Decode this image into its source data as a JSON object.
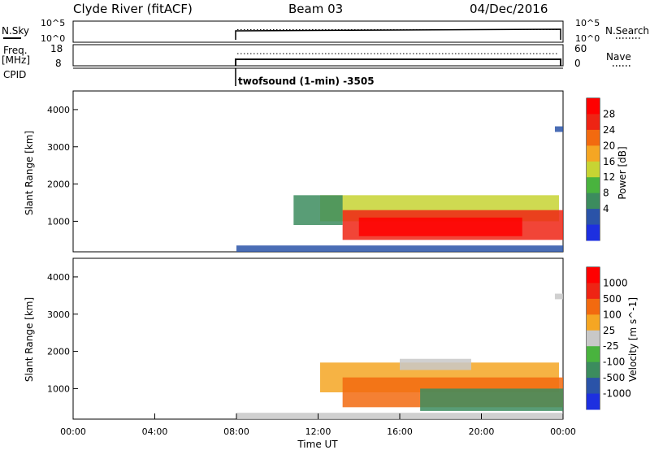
{
  "header": {
    "site": "Clyde River (fitACF)",
    "beam": "Beam 03",
    "date": "04/Dec/2016"
  },
  "panels": {
    "nsky": {
      "left_label": "N.Sky",
      "left_ticks": [
        "10^5",
        "10^0"
      ],
      "right_ticks": [
        "10^5",
        "10^0"
      ],
      "right_label": "N.Search"
    },
    "freq": {
      "left_label": "Freq.",
      "left_unit": "[MHz]",
      "left_ticks": [
        "18",
        "8"
      ],
      "right_ticks": [
        "60",
        "0"
      ],
      "right_label": "Nave"
    },
    "cpid": {
      "left_label": "CPID",
      "program": "twofsound (1-min) -3505"
    }
  },
  "colors": {
    "power_scale": [
      "#1d2fe0",
      "#2a53a8",
      "#3c8c5e",
      "#49b33e",
      "#c7d433",
      "#f5a623",
      "#f26a0f",
      "#ee2414",
      "#ff0000"
    ],
    "velocity_scale": [
      "#1d2fe0",
      "#2a53a8",
      "#3c8c5e",
      "#49b33e",
      "#c8c8c8",
      "#f5a623",
      "#f26a0f",
      "#ee2414",
      "#ff0000"
    ]
  },
  "chart_data": [
    {
      "type": "heatmap",
      "name": "power",
      "ylabel": "Slant Range [km]",
      "ylim": [
        180,
        4500
      ],
      "yticks": [
        "4000",
        "3000",
        "2000",
        "1000"
      ],
      "colorbar_label": "Power [dB]",
      "colorbar_ticks": [
        "28",
        "24",
        "20",
        "16",
        "12",
        "8",
        "4"
      ],
      "xlim_hours": [
        0,
        24
      ],
      "regions": [
        {
          "x": [
            8,
            24
          ],
          "y": [
            180,
            350
          ],
          "level": 1
        },
        {
          "x": [
            12.1,
            23.8
          ],
          "y": [
            1000,
            1700
          ],
          "level": 4
        },
        {
          "x": [
            13.2,
            24
          ],
          "y": [
            500,
            1300
          ],
          "level": 7
        },
        {
          "x": [
            14,
            22
          ],
          "y": [
            600,
            1100
          ],
          "level": 8
        },
        {
          "x": [
            10.8,
            13.2
          ],
          "y": [
            900,
            1700
          ],
          "level": 2
        },
        {
          "x": [
            23.6,
            24
          ],
          "y": [
            3400,
            3550
          ],
          "level": 1
        }
      ]
    },
    {
      "type": "heatmap",
      "name": "velocity",
      "ylabel": "Slant Range [km]",
      "ylim": [
        180,
        4500
      ],
      "yticks": [
        "4000",
        "3000",
        "2000",
        "1000"
      ],
      "colorbar_label": "Velocity [m s^-1]",
      "colorbar_ticks": [
        "1000",
        "500",
        "100",
        "25",
        "-25",
        "-100",
        "-500",
        "-1000"
      ],
      "xlabel": "Time UT",
      "xticks": [
        "00:00",
        "04:00",
        "08:00",
        "12:00",
        "16:00",
        "20:00",
        "00:00"
      ],
      "xlim_hours": [
        0,
        24
      ],
      "regions": [
        {
          "x": [
            8,
            24
          ],
          "y": [
            180,
            350
          ],
          "level": 4
        },
        {
          "x": [
            12.1,
            23.8
          ],
          "y": [
            900,
            1700
          ],
          "level": 5
        },
        {
          "x": [
            13.2,
            24
          ],
          "y": [
            500,
            1300
          ],
          "level": 6
        },
        {
          "x": [
            17,
            24
          ],
          "y": [
            400,
            1000
          ],
          "level": 2
        },
        {
          "x": [
            16,
            19.5
          ],
          "y": [
            1500,
            1800
          ],
          "level": 4
        },
        {
          "x": [
            23.6,
            24
          ],
          "y": [
            3400,
            3550
          ],
          "level": 4
        }
      ]
    }
  ]
}
